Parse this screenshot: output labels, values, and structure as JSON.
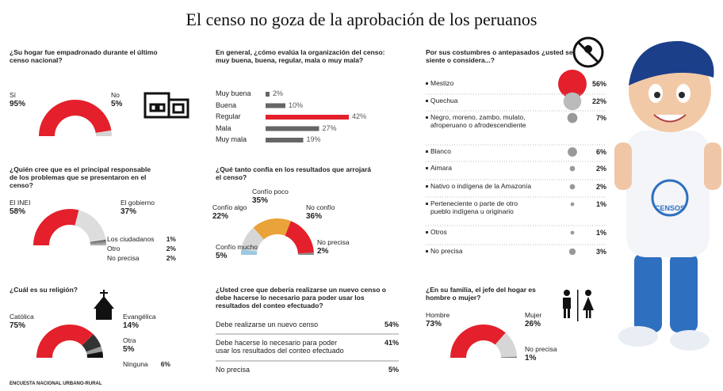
{
  "title": "El censo no goza de la aprobación de los peruanos",
  "footer": "ENCUESTA NACIONAL URBANO-RURAL",
  "mascot_text": "CENSOS",
  "chart_data": [
    {
      "type": "semicircle",
      "question": "¿Su hogar fue empadronado durante el último censo nacional?",
      "categories": [
        "Sí",
        "No"
      ],
      "values": [
        95,
        5
      ],
      "value_labels": [
        "95%",
        "5%"
      ],
      "colors": [
        "#e3202b",
        "#d4d4d4"
      ]
    },
    {
      "type": "bar",
      "question": "En general, ¿cómo evalúa la organización del censo: muy buena, buena, regular, mala o muy mala?",
      "categories": [
        "Muy buena",
        "Buena",
        "Regular",
        "Mala",
        "Muy mala"
      ],
      "values": [
        2,
        10,
        42,
        27,
        19
      ],
      "value_labels": [
        "2%",
        "10%",
        "42%",
        "27%",
        "19%"
      ],
      "colors": [
        "#666666",
        "#666666",
        "#e3202b",
        "#666666",
        "#666666"
      ]
    },
    {
      "type": "dot",
      "question": "Por sus costumbres o antepasados ¿usted se siente o considera...?",
      "categories": [
        "Mestizo",
        "Quechua",
        "Negro, moreno, zambo, mulato, afroperuano o afrodescendiente",
        "Blanco",
        "Aimara",
        "Nativo o indígena de la Amazonía",
        "Perteneciente o parte de otro pueblo indígena u originario",
        "Otros",
        "No precisa"
      ],
      "values": [
        56,
        22,
        7,
        6,
        2,
        2,
        1,
        1,
        3
      ],
      "value_labels": [
        "56%",
        "22%",
        "7%",
        "6%",
        "2%",
        "2%",
        "1%",
        "1%",
        "3%"
      ],
      "colors": [
        "#e3202b",
        "#bbbbbb",
        "#999999",
        "#999999",
        "#999999",
        "#999999",
        "#999999",
        "#999999",
        "#999999"
      ]
    },
    {
      "type": "semicircle",
      "question": "¿Quién cree que es el principal responsable de los problemas que se presentaron en el censo?",
      "categories": [
        "El INEI",
        "El gobierno",
        "Los ciudadanos",
        "Otro",
        "No precisa"
      ],
      "values": [
        58,
        37,
        1,
        2,
        2
      ],
      "value_labels": [
        "58%",
        "37%",
        "1%",
        "2%",
        "2%"
      ],
      "colors": [
        "#e3202b",
        "#dddddd",
        "#555555",
        "#888888",
        "#aaaaaa"
      ]
    },
    {
      "type": "semicircle",
      "question": "¿Qué tanto confía en los resultados que arrojará el censo?",
      "categories": [
        "Confío mucho",
        "Confío algo",
        "Confío poco",
        "No confío",
        "No precisa"
      ],
      "values": [
        5,
        22,
        35,
        36,
        2
      ],
      "value_labels": [
        "5%",
        "22%",
        "35%",
        "36%",
        "2%"
      ],
      "colors": [
        "#9cc7e2",
        "#d6d6d6",
        "#e9a33a",
        "#e3202b",
        "#888888"
      ]
    },
    {
      "type": "table",
      "question": "¿Usted cree que debería realizarse un nuevo censo o debe hacerse lo necesario para poder usar los resultados del conteo efectuado?",
      "categories": [
        "Debe realizarse un nuevo censo",
        "Debe hacerse lo necesario para poder usar los resultados del conteo efectuado",
        "No precisa"
      ],
      "values": [
        54,
        41,
        5
      ],
      "value_labels": [
        "54%",
        "41%",
        "5%"
      ]
    },
    {
      "type": "semicircle",
      "question": "¿Cuál es su religión?",
      "categories": [
        "Católica",
        "Evangélica",
        "Otra",
        "Ninguna"
      ],
      "values": [
        75,
        14,
        5,
        6
      ],
      "value_labels": [
        "75%",
        "14%",
        "5%",
        "6%"
      ],
      "colors": [
        "#e3202b",
        "#333333",
        "#999999",
        "#111111"
      ]
    },
    {
      "type": "semicircle",
      "question": "¿En su familia, el jefe del hogar es hombre o mujer?",
      "categories": [
        "Hombre",
        "Mujer",
        "No precisa"
      ],
      "values": [
        73,
        26,
        1
      ],
      "value_labels": [
        "73%",
        "26%",
        "1%"
      ],
      "colors": [
        "#e3202b",
        "#d6d6d6",
        "#777777"
      ]
    }
  ]
}
